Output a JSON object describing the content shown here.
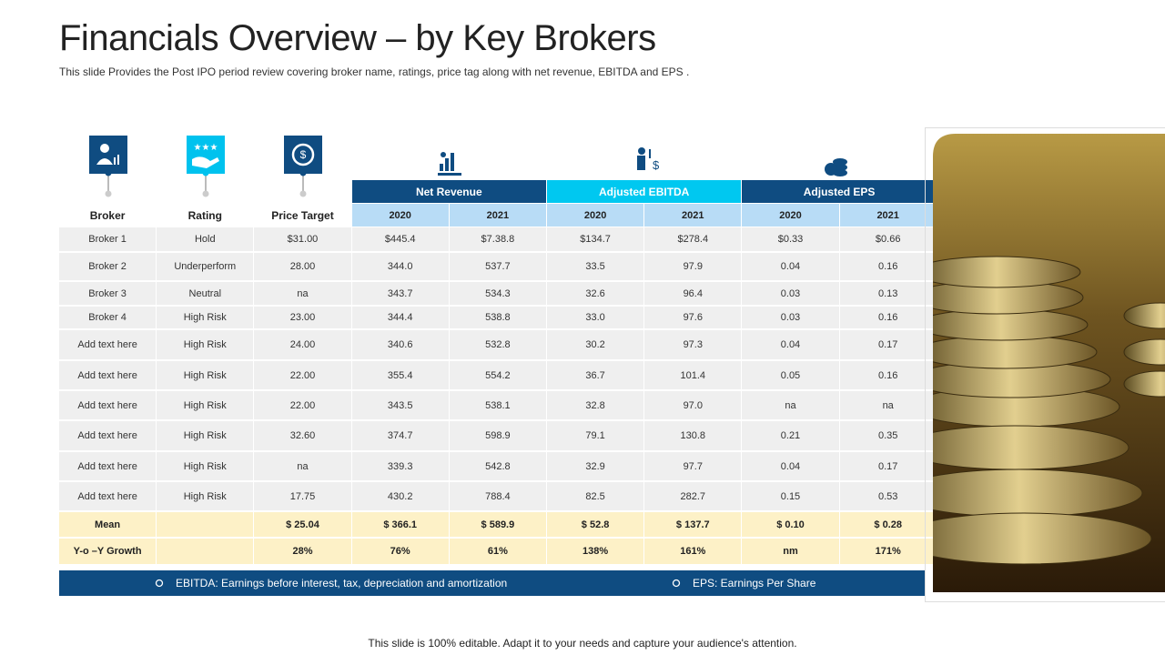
{
  "header": {
    "title": "Financials Overview – by Key Brokers",
    "subtitle": "This slide Provides the Post IPO period review covering broker name, ratings, price tag along with net revenue, EBITDA and EPS ."
  },
  "table": {
    "column_headers": [
      "Broker",
      "Rating",
      "Price Target"
    ],
    "groups": [
      {
        "label": "Net Revenue",
        "years": [
          "2020",
          "2021"
        ]
      },
      {
        "label": "Adjusted EBITDA",
        "years": [
          "2020",
          "2021"
        ]
      },
      {
        "label": "Adjusted EPS",
        "years": [
          "2020",
          "2021"
        ]
      }
    ],
    "rows": [
      [
        "Broker 1",
        "Hold",
        "$31.00",
        "$445.4",
        "$7.38.8",
        "$134.7",
        "$278.4",
        "$0.33",
        "$0.66"
      ],
      [
        "Broker 2",
        "Underperform",
        "28.00",
        "344.0",
        "537.7",
        "33.5",
        "97.9",
        "0.04",
        "0.16"
      ],
      [
        "Broker 3",
        "Neutral",
        "na",
        "343.7",
        "534.3",
        "32.6",
        "96.4",
        "0.03",
        "0.13"
      ],
      [
        "Broker 4",
        "High Risk",
        "23.00",
        "344.4",
        "538.8",
        "33.0",
        "97.6",
        "0.03",
        "0.16"
      ],
      [
        "Add text here",
        "High Risk",
        "24.00",
        "340.6",
        "532.8",
        "30.2",
        "97.3",
        "0.04",
        "0.17"
      ],
      [
        "Add text here",
        "High Risk",
        "22.00",
        "355.4",
        "554.2",
        "36.7",
        "101.4",
        "0.05",
        "0.16"
      ],
      [
        "Add text here",
        "High Risk",
        "22.00",
        "343.5",
        "538.1",
        "32.8",
        "97.0",
        "na",
        "na"
      ],
      [
        "Add text here",
        "High Risk",
        "32.60",
        "374.7",
        "598.9",
        "79.1",
        "130.8",
        "0.21",
        "0.35"
      ],
      [
        "Add text here",
        "High Risk",
        "na",
        "339.3",
        "542.8",
        "32.9",
        "97.7",
        "0.04",
        "0.17"
      ],
      [
        "Add text here",
        "High Risk",
        "17.75",
        "430.2",
        "788.4",
        "82.5",
        "282.7",
        "0.15",
        "0.53"
      ]
    ],
    "summary_rows": [
      {
        "label": "Mean",
        "cells": [
          "$ 25.04",
          "$ 366.1",
          "$ 589.9",
          "$ 52.8",
          "$ 137.7",
          "$ 0.10",
          "$ 0.28"
        ]
      },
      {
        "label": "Y-o –Y Growth",
        "cells": [
          "28%",
          "76%",
          "61%",
          "138%",
          "161%",
          "nm",
          "171%"
        ]
      }
    ]
  },
  "legend": [
    "EBITDA: Earnings before interest, tax, depreciation and amortization",
    "EPS: Earnings Per Share"
  ],
  "footer": "This slide is 100% editable. Adapt it to your needs and capture your audience's attention."
}
